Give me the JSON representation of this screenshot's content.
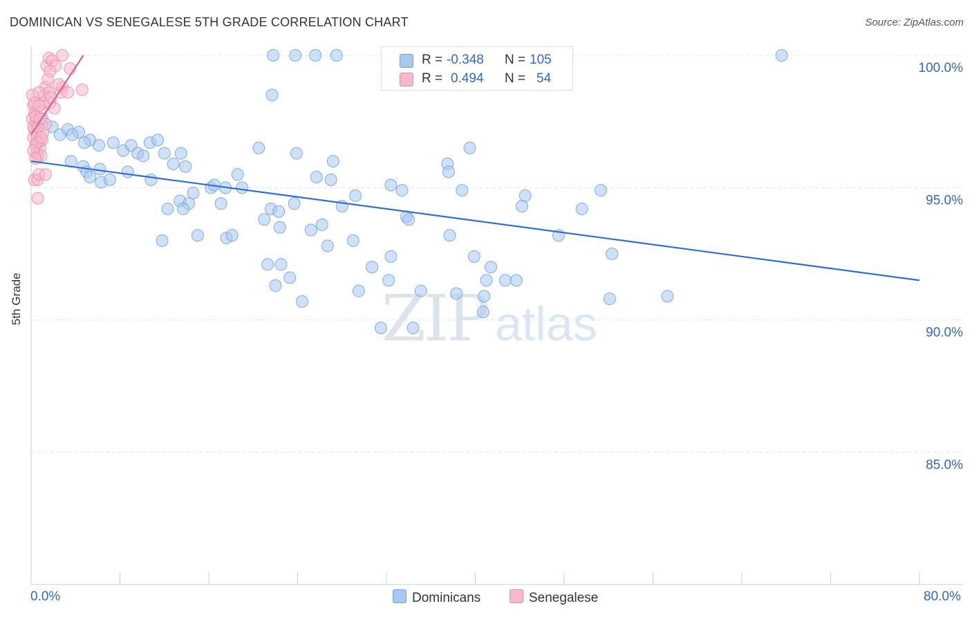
{
  "header": {
    "title": "DOMINICAN VS SENEGALESE 5TH GRADE CORRELATION CHART",
    "source": "Source: ZipAtlas.com"
  },
  "legend": {
    "rows": [
      {
        "r_label": "R =",
        "r_value": "-0.348",
        "n_label": "N =",
        "n_value": "105",
        "color": "#a8c8f0"
      },
      {
        "r_label": "R =",
        "r_value": "0.494",
        "n_label": "N =",
        "n_value": "54",
        "color": "#f5b8cc"
      }
    ],
    "bottom": [
      "Dominicans",
      "Senegalese"
    ]
  },
  "colors": {
    "blue_fill": "#a8c8f0",
    "blue_stroke": "#6f9fd8",
    "blue_line": "#2f6fcc",
    "pink_fill": "#f5b8cc",
    "pink_stroke": "#e889a8",
    "pink_line": "#e0608a",
    "tick_text": "#3366cc"
  },
  "watermark": {
    "zip": "ZIP",
    "atlas": "atlas"
  },
  "chart_data": {
    "type": "scatter",
    "title": "DOMINICAN VS SENEGALESE 5TH GRADE CORRELATION CHART",
    "xlabel": "",
    "ylabel": "5th Grade",
    "xlim": [
      0,
      80
    ],
    "ylim": [
      80.5,
      100.4
    ],
    "x_tick_labels": [
      "0.0%",
      "80.0%"
    ],
    "y_ticks": [
      100,
      95,
      90,
      85
    ],
    "y_tick_labels": [
      "100.0%",
      "95.0%",
      "90.0%",
      "85.0%"
    ],
    "grid": "horizontal dashed",
    "legend_placement": "top-center",
    "series": [
      {
        "name": "Dominicans",
        "r": -0.348,
        "n": 105,
        "trend": [
          [
            0,
            96.0
          ],
          [
            80,
            91.5
          ]
        ],
        "points": [
          [
            1.0,
            97.6
          ],
          [
            1.9,
            97.3
          ],
          [
            2.6,
            97.0
          ],
          [
            3.3,
            97.2
          ],
          [
            4.3,
            97.1
          ],
          [
            3.7,
            97.0
          ],
          [
            5.3,
            96.8
          ],
          [
            4.8,
            96.7
          ],
          [
            6.1,
            96.6
          ],
          [
            7.4,
            96.7
          ],
          [
            8.3,
            96.4
          ],
          [
            9.0,
            96.6
          ],
          [
            9.6,
            96.3
          ],
          [
            10.1,
            96.2
          ],
          [
            10.7,
            96.7
          ],
          [
            11.4,
            96.8
          ],
          [
            12.0,
            96.3
          ],
          [
            12.8,
            95.9
          ],
          [
            13.5,
            96.3
          ],
          [
            13.9,
            95.8
          ],
          [
            3.6,
            96.0
          ],
          [
            4.7,
            95.8
          ],
          [
            5.0,
            95.6
          ],
          [
            5.3,
            95.4
          ],
          [
            6.2,
            95.7
          ],
          [
            6.3,
            95.2
          ],
          [
            7.1,
            95.3
          ],
          [
            8.7,
            95.6
          ],
          [
            10.8,
            95.3
          ],
          [
            12.3,
            94.2
          ],
          [
            11.8,
            93.0
          ],
          [
            13.4,
            94.5
          ],
          [
            14.2,
            94.4
          ],
          [
            14.6,
            94.8
          ],
          [
            13.7,
            94.2
          ],
          [
            15.0,
            93.2
          ],
          [
            16.2,
            95.0
          ],
          [
            16.5,
            95.1
          ],
          [
            17.1,
            94.4
          ],
          [
            17.5,
            95.0
          ],
          [
            17.6,
            93.1
          ],
          [
            18.1,
            93.2
          ],
          [
            18.6,
            95.5
          ],
          [
            19.0,
            95.0
          ],
          [
            20.5,
            96.5
          ],
          [
            21.0,
            93.8
          ],
          [
            21.6,
            94.2
          ],
          [
            21.3,
            92.1
          ],
          [
            22.3,
            94.1
          ],
          [
            22.0,
            91.3
          ],
          [
            22.4,
            93.5
          ],
          [
            22.5,
            92.1
          ],
          [
            23.3,
            91.6
          ],
          [
            23.7,
            94.4
          ],
          [
            24.4,
            90.7
          ],
          [
            23.9,
            96.3
          ],
          [
            25.2,
            93.4
          ],
          [
            25.7,
            95.4
          ],
          [
            26.2,
            93.6
          ],
          [
            26.7,
            92.8
          ],
          [
            27.0,
            95.3
          ],
          [
            27.2,
            96.0
          ],
          [
            28.0,
            94.3
          ],
          [
            29.0,
            93.0
          ],
          [
            29.2,
            94.7
          ],
          [
            29.5,
            91.1
          ],
          [
            30.7,
            92.0
          ],
          [
            32.2,
            91.5
          ],
          [
            32.4,
            92.4
          ],
          [
            32.4,
            95.1
          ],
          [
            33.4,
            94.9
          ],
          [
            33.8,
            93.9
          ],
          [
            34.0,
            93.8
          ],
          [
            35.1,
            91.1
          ],
          [
            31.5,
            89.7
          ],
          [
            34.4,
            89.7
          ],
          [
            37.5,
            95.9
          ],
          [
            37.6,
            95.6
          ],
          [
            37.7,
            93.2
          ],
          [
            38.3,
            91.0
          ],
          [
            38.8,
            94.9
          ],
          [
            39.5,
            96.5
          ],
          [
            39.9,
            92.4
          ],
          [
            40.8,
            90.9
          ],
          [
            40.7,
            90.3
          ],
          [
            41.0,
            91.5
          ],
          [
            41.4,
            92.0
          ],
          [
            42.7,
            91.5
          ],
          [
            43.7,
            91.5
          ],
          [
            44.2,
            94.3
          ],
          [
            44.5,
            94.7
          ],
          [
            47.5,
            93.2
          ],
          [
            49.6,
            94.2
          ],
          [
            51.3,
            94.9
          ],
          [
            52.1,
            90.8
          ],
          [
            52.3,
            92.5
          ],
          [
            57.3,
            90.9
          ],
          [
            21.7,
            98.5
          ],
          [
            21.8,
            100.0
          ],
          [
            23.8,
            100.0
          ],
          [
            25.6,
            100.0
          ],
          [
            27.5,
            100.0
          ],
          [
            32.3,
            100.0
          ],
          [
            43.4,
            100.0
          ],
          [
            67.6,
            100.0
          ]
        ]
      },
      {
        "name": "Senegalese",
        "r": 0.494,
        "n": 54,
        "trend": [
          [
            0,
            97.0
          ],
          [
            4.7,
            100.0
          ]
        ],
        "points": [
          [
            0.1,
            98.5
          ],
          [
            0.2,
            98.1
          ],
          [
            0.3,
            97.8
          ],
          [
            0.4,
            97.5
          ],
          [
            0.3,
            97.2
          ],
          [
            0.2,
            96.9
          ],
          [
            0.4,
            96.6
          ],
          [
            0.5,
            96.3
          ],
          [
            0.6,
            96.2
          ],
          [
            0.3,
            95.3
          ],
          [
            0.6,
            95.3
          ],
          [
            0.7,
            95.5
          ],
          [
            0.6,
            94.6
          ],
          [
            0.1,
            97.6
          ],
          [
            0.2,
            97.3
          ],
          [
            0.5,
            97.0
          ],
          [
            0.7,
            96.7
          ],
          [
            0.8,
            96.5
          ],
          [
            0.9,
            96.2
          ],
          [
            1.0,
            96.8
          ],
          [
            1.1,
            97.1
          ],
          [
            1.3,
            97.4
          ],
          [
            0.9,
            97.9
          ],
          [
            1.1,
            98.2
          ],
          [
            1.2,
            98.5
          ],
          [
            1.3,
            98.8
          ],
          [
            1.7,
            98.2
          ],
          [
            1.6,
            98.6
          ],
          [
            2.1,
            98.0
          ],
          [
            0.4,
            97.7
          ],
          [
            0.3,
            98.2
          ],
          [
            0.7,
            98.1
          ],
          [
            1.4,
            99.6
          ],
          [
            1.6,
            99.9
          ],
          [
            1.9,
            99.8
          ],
          [
            2.2,
            99.6
          ],
          [
            1.7,
            99.4
          ],
          [
            2.8,
            98.8
          ],
          [
            2.7,
            98.6
          ],
          [
            3.3,
            98.6
          ],
          [
            3.5,
            99.5
          ],
          [
            4.6,
            98.7
          ],
          [
            2.8,
            100.0
          ],
          [
            0.5,
            96.7
          ],
          [
            0.6,
            97.3
          ],
          [
            0.8,
            97.6
          ],
          [
            0.2,
            96.4
          ],
          [
            0.4,
            96.1
          ],
          [
            1.3,
            95.5
          ],
          [
            0.9,
            96.9
          ],
          [
            1.8,
            98.4
          ],
          [
            1.5,
            99.1
          ],
          [
            0.7,
            98.6
          ],
          [
            2.5,
            98.9
          ]
        ]
      }
    ]
  }
}
